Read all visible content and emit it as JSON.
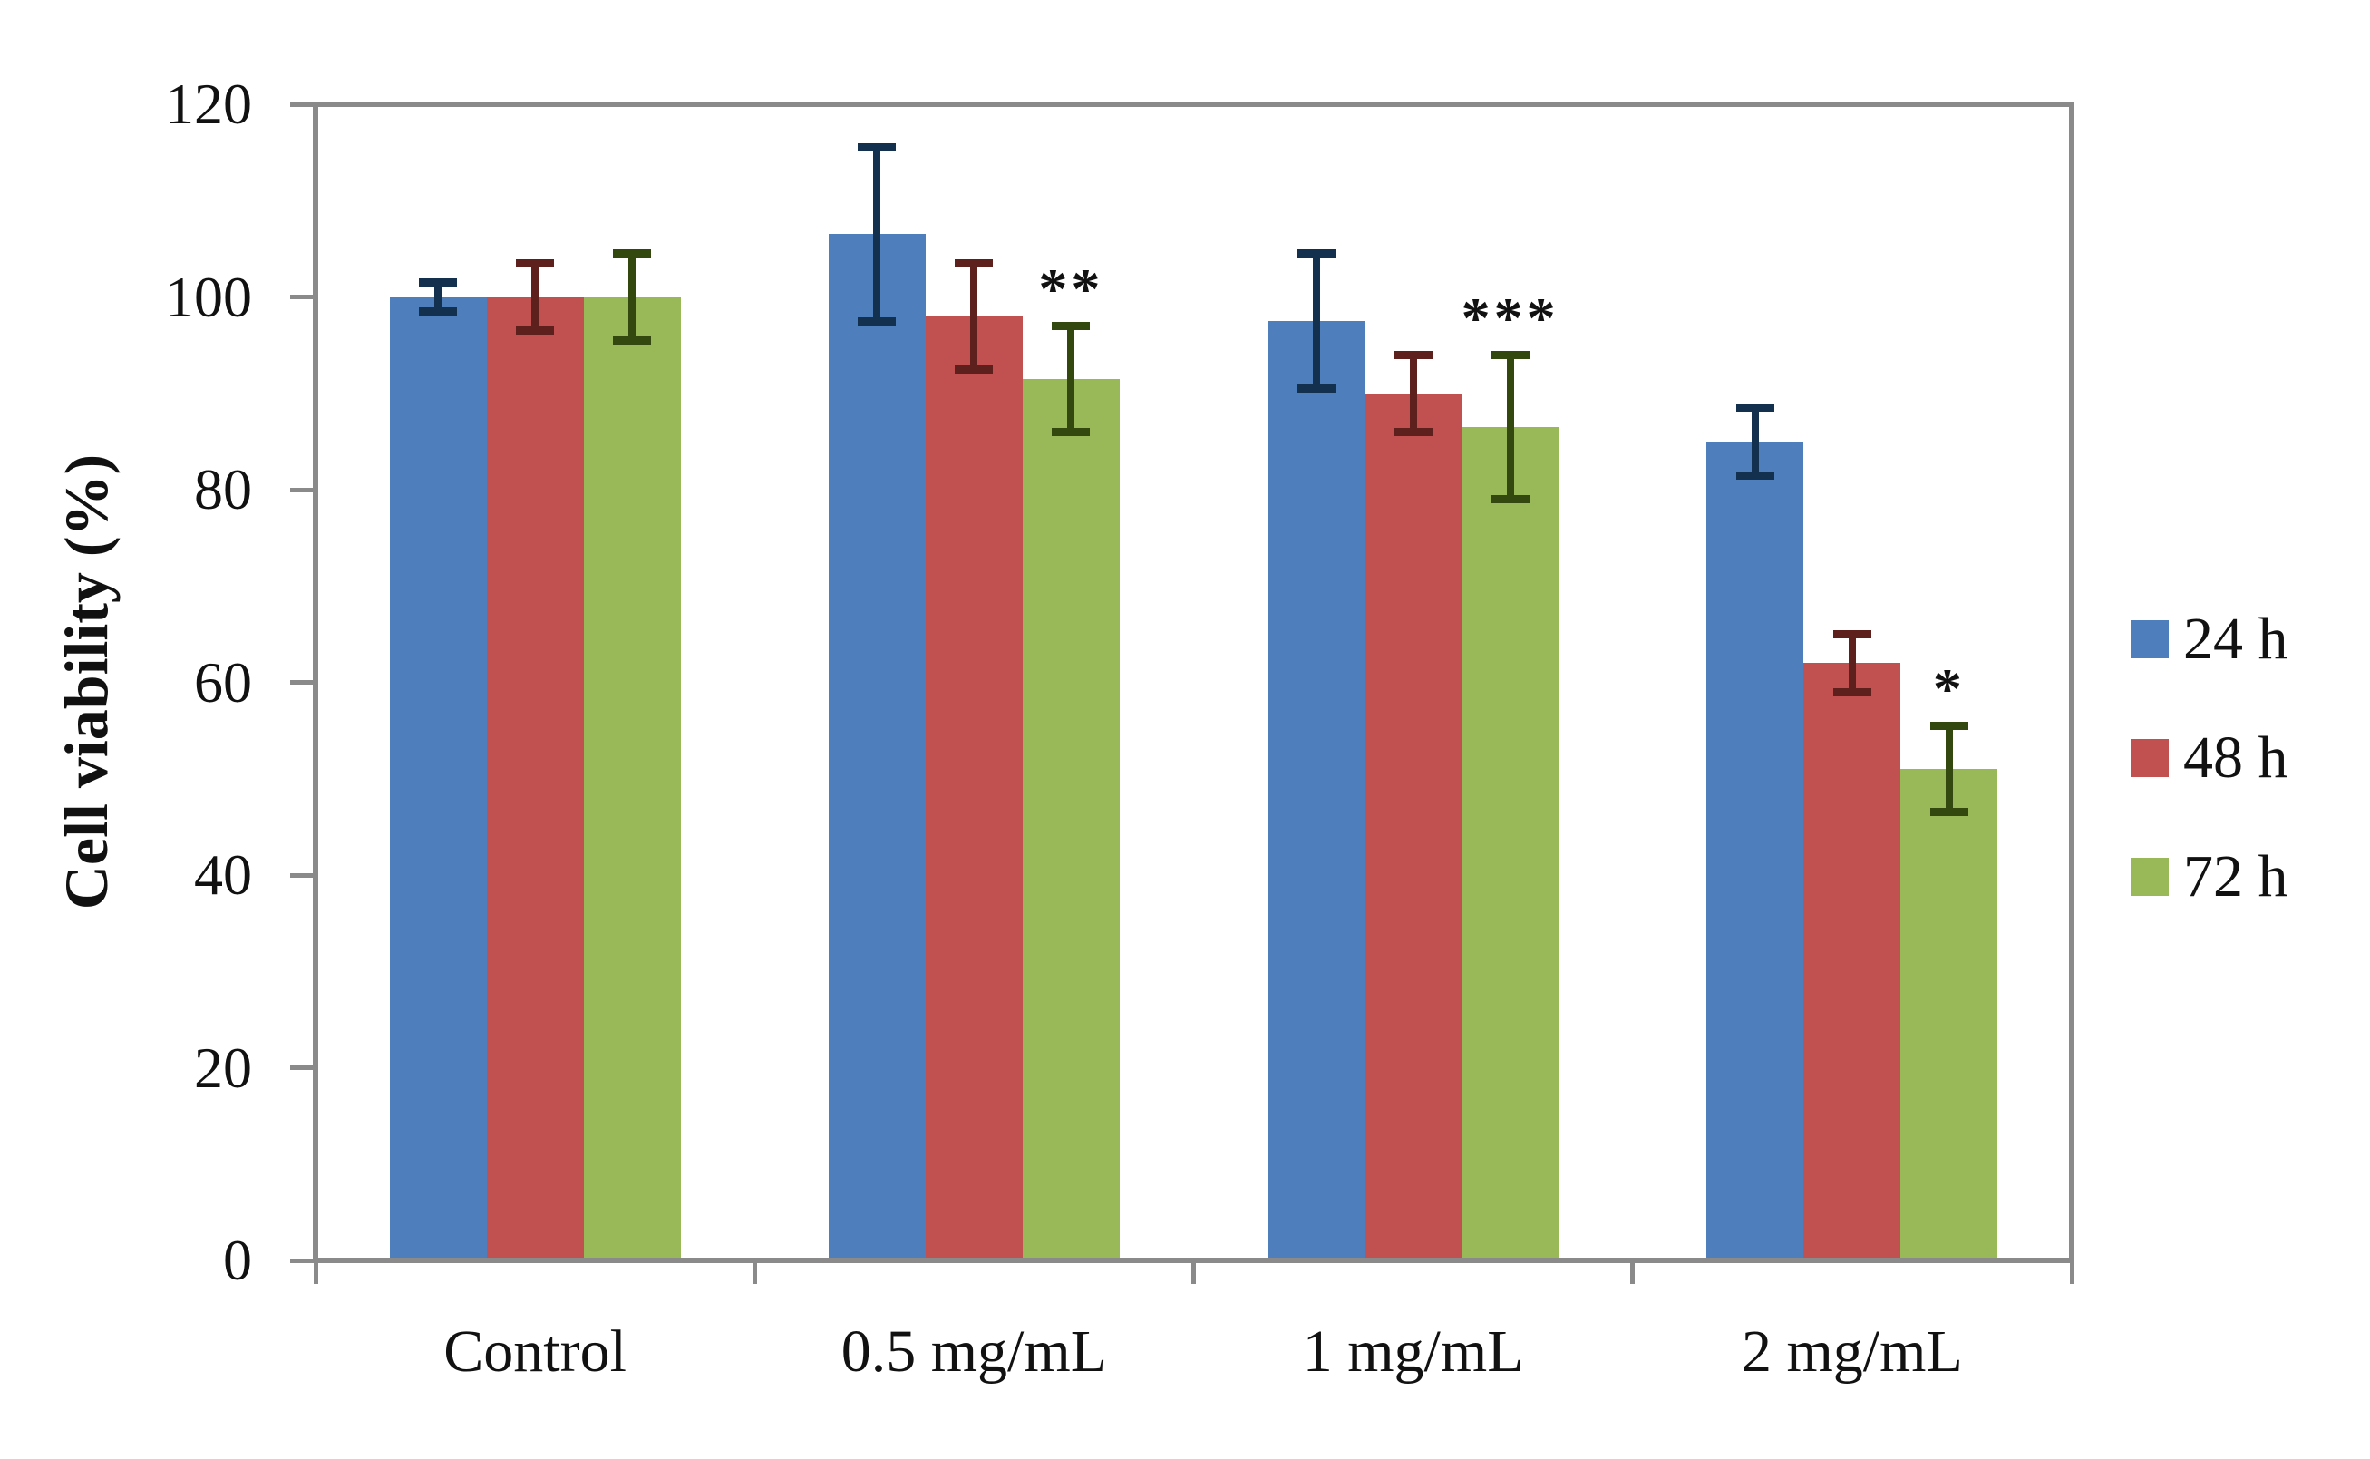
{
  "chart_data": {
    "type": "bar",
    "title": "",
    "ylabel": "Cell viability (%)",
    "xlabel": "",
    "categories": [
      "Control",
      "0.5 mg/mL",
      "1 mg/mL",
      "2 mg/mL"
    ],
    "series": [
      {
        "name": "24 h",
        "color": "#4E7FBC",
        "error_color": "#14304F",
        "values": [
          100,
          106.5,
          97.5,
          85
        ],
        "errors": [
          1.5,
          9,
          7,
          3.5
        ]
      },
      {
        "name": "48 h",
        "color": "#C05150",
        "error_color": "#5E201D",
        "values": [
          100,
          98,
          90,
          62
        ],
        "errors": [
          3.5,
          5.5,
          4,
          3
        ]
      },
      {
        "name": "72 h",
        "color": "#99B857",
        "error_color": "#33480F",
        "values": [
          100,
          91.5,
          86.5,
          51
        ],
        "errors": [
          4.5,
          5.5,
          7.5,
          4.5
        ]
      }
    ],
    "significance": [
      {
        "category_index": 1,
        "series_index": 2,
        "label": "**"
      },
      {
        "category_index": 2,
        "series_index": 2,
        "label": "***"
      },
      {
        "category_index": 3,
        "series_index": 2,
        "label": "*"
      }
    ],
    "y_axis": {
      "min": 0,
      "max": 120,
      "step": 20,
      "tick_labels": [
        "0",
        "20",
        "40",
        "60",
        "80",
        "100",
        "120"
      ]
    },
    "legend_position": "right",
    "legend_entries": [
      "24 h",
      "48 h",
      "72 h"
    ],
    "grid": false
  },
  "colors": {
    "axis": "#8A8A8A",
    "text": "#111111",
    "background": "#FFFFFF"
  }
}
